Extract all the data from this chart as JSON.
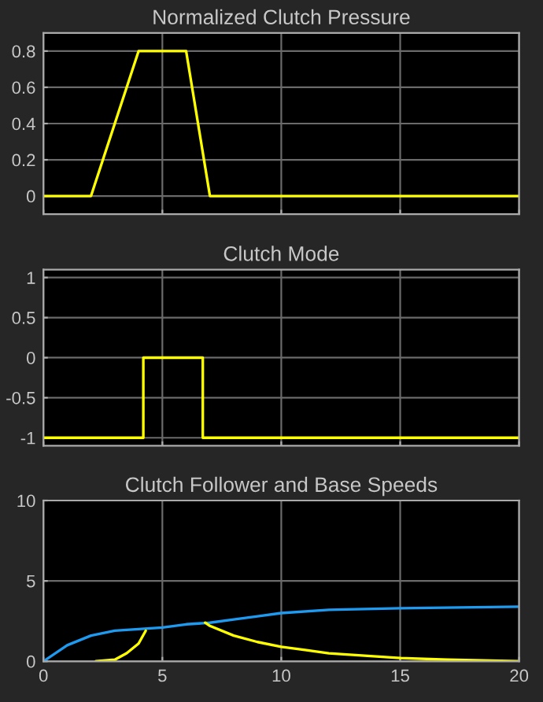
{
  "chart_data": [
    {
      "type": "line",
      "title": "Normalized Clutch Pressure",
      "x": [
        0,
        2.0,
        4.0,
        6.0,
        7.0,
        20
      ],
      "values": [
        0,
        0,
        0.8,
        0.8,
        0,
        0
      ],
      "color": "#ffff00",
      "xlim": [
        0,
        20
      ],
      "ylim": [
        -0.1,
        0.9
      ],
      "xticks": [
        0,
        5,
        10,
        15,
        20
      ],
      "yticks": [
        0,
        0.2,
        0.4,
        0.6,
        0.8
      ],
      "grid": true,
      "tick_labels": "y"
    },
    {
      "type": "step",
      "title": "Clutch Mode",
      "x": [
        0,
        4.2,
        6.7,
        20
      ],
      "values": [
        -1,
        0,
        -1,
        -1
      ],
      "color": "#ffff00",
      "xlim": [
        0,
        20
      ],
      "ylim": [
        -1.1,
        1.1
      ],
      "xticks": [
        0,
        5,
        10,
        15,
        20
      ],
      "yticks": [
        -1,
        -0.5,
        0,
        0.5,
        1
      ],
      "grid": true,
      "tick_labels": "y"
    },
    {
      "type": "line",
      "title": "Clutch Follower and Base Speeds",
      "xlim": [
        0,
        20
      ],
      "ylim": [
        0,
        10
      ],
      "xticks": [
        0,
        5,
        10,
        15,
        20
      ],
      "yticks": [
        0,
        5,
        10
      ],
      "grid": true,
      "series": [
        {
          "color": "#1e9bf0",
          "x": [
            0,
            1,
            2,
            3,
            4,
            5,
            6,
            7,
            8,
            9,
            10,
            12,
            15,
            20
          ],
          "values": [
            0,
            1.0,
            1.6,
            1.9,
            2.0,
            2.1,
            2.3,
            2.4,
            2.6,
            2.8,
            3.0,
            3.2,
            3.3,
            3.4
          ]
        },
        {
          "color": "#ffff00",
          "x": [
            2.2,
            3,
            3.5,
            4,
            4.3,
            5.5,
            6.8,
            7,
            8,
            9,
            10,
            11,
            12,
            13,
            14,
            15,
            17,
            20
          ],
          "values": [
            0,
            0.1,
            0.5,
            1.1,
            1.9,
            null,
            2.4,
            2.2,
            1.6,
            1.2,
            0.9,
            0.7,
            0.5,
            0.4,
            0.3,
            0.2,
            0.1,
            0.0
          ]
        }
      ]
    }
  ]
}
